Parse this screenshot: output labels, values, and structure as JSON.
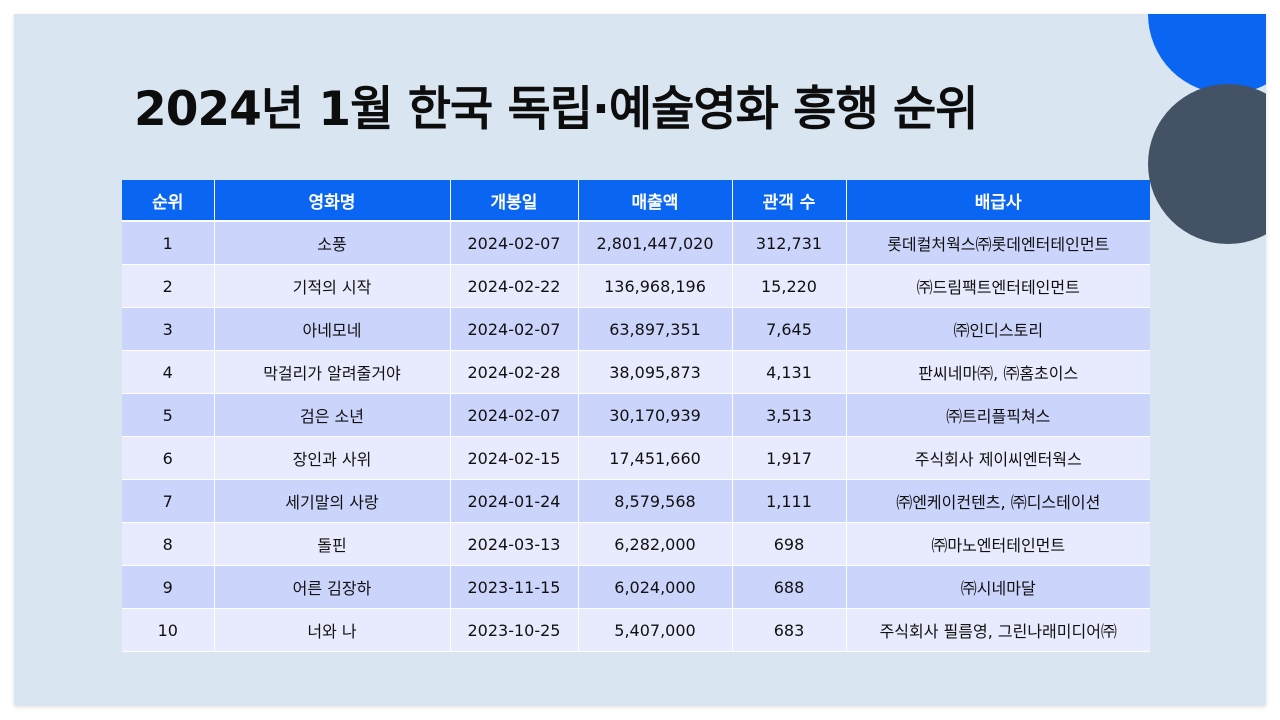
{
  "title": "2024년 1월 한국 독립·예술영화 흥행 순위",
  "colors": {
    "header_bg": "#0a66f2",
    "row_dark": "#cbd4fb",
    "row_light": "#e8ebfd",
    "background": "#d9e6f1",
    "accent_blue": "#0a66f2",
    "accent_slate": "#445265"
  },
  "table": {
    "headers": [
      "순위",
      "영화명",
      "개봉일",
      "매출액",
      "관객 수",
      "배급사"
    ],
    "rows": [
      [
        "1",
        "소풍",
        "2024-02-07",
        "2,801,447,020",
        "312,731",
        "롯데컬처웍스㈜롯데엔터테인먼트"
      ],
      [
        "2",
        "기적의 시작",
        "2024-02-22",
        "136,968,196",
        "15,220",
        "㈜드림팩트엔터테인먼트"
      ],
      [
        "3",
        "아네모네",
        "2024-02-07",
        "63,897,351",
        "7,645",
        "㈜인디스토리"
      ],
      [
        "4",
        "막걸리가 알려줄거야",
        "2024-02-28",
        "38,095,873",
        "4,131",
        "판씨네마㈜, ㈜홈초이스"
      ],
      [
        "5",
        "검은 소년",
        "2024-02-07",
        "30,170,939",
        "3,513",
        "㈜트리플픽쳐스"
      ],
      [
        "6",
        "장인과 사위",
        "2024-02-15",
        "17,451,660",
        "1,917",
        "주식회사 제이씨엔터웍스"
      ],
      [
        "7",
        "세기말의 사랑",
        "2024-01-24",
        "8,579,568",
        "1,111",
        "㈜엔케이컨텐츠, ㈜디스테이션"
      ],
      [
        "8",
        "돌핀",
        "2024-03-13",
        "6,282,000",
        "698",
        "㈜마노엔터테인먼트"
      ],
      [
        "9",
        "어른 김장하",
        "2023-11-15",
        "6,024,000",
        "688",
        "㈜시네마달"
      ],
      [
        "10",
        "너와 나",
        "2023-10-25",
        "5,407,000",
        "683",
        "주식회사 필름영, 그린나래미디어㈜"
      ]
    ]
  }
}
